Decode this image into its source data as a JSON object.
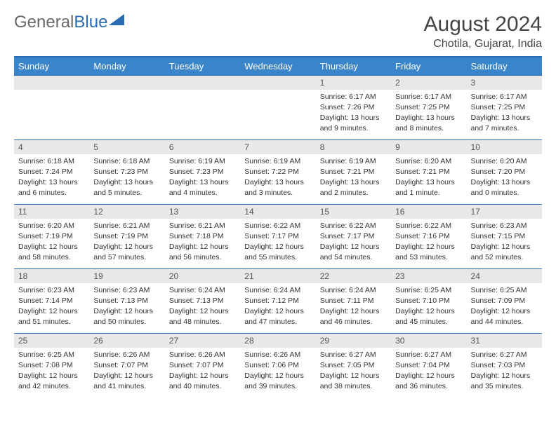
{
  "logo": {
    "text1": "General",
    "text2": "Blue"
  },
  "title": "August 2024",
  "location": "Chotila, Gujarat, India",
  "colors": {
    "header_bg": "#3a85c9",
    "header_border": "#2a6db5",
    "header_text": "#ffffff",
    "daynum_bg": "#e8e8e8",
    "text": "#333333"
  },
  "day_names": [
    "Sunday",
    "Monday",
    "Tuesday",
    "Wednesday",
    "Thursday",
    "Friday",
    "Saturday"
  ],
  "weeks": [
    [
      null,
      null,
      null,
      null,
      {
        "n": "1",
        "sr": "Sunrise: 6:17 AM",
        "ss": "Sunset: 7:26 PM",
        "dl": "Daylight: 13 hours and 9 minutes."
      },
      {
        "n": "2",
        "sr": "Sunrise: 6:17 AM",
        "ss": "Sunset: 7:25 PM",
        "dl": "Daylight: 13 hours and 8 minutes."
      },
      {
        "n": "3",
        "sr": "Sunrise: 6:17 AM",
        "ss": "Sunset: 7:25 PM",
        "dl": "Daylight: 13 hours and 7 minutes."
      }
    ],
    [
      {
        "n": "4",
        "sr": "Sunrise: 6:18 AM",
        "ss": "Sunset: 7:24 PM",
        "dl": "Daylight: 13 hours and 6 minutes."
      },
      {
        "n": "5",
        "sr": "Sunrise: 6:18 AM",
        "ss": "Sunset: 7:23 PM",
        "dl": "Daylight: 13 hours and 5 minutes."
      },
      {
        "n": "6",
        "sr": "Sunrise: 6:19 AM",
        "ss": "Sunset: 7:23 PM",
        "dl": "Daylight: 13 hours and 4 minutes."
      },
      {
        "n": "7",
        "sr": "Sunrise: 6:19 AM",
        "ss": "Sunset: 7:22 PM",
        "dl": "Daylight: 13 hours and 3 minutes."
      },
      {
        "n": "8",
        "sr": "Sunrise: 6:19 AM",
        "ss": "Sunset: 7:21 PM",
        "dl": "Daylight: 13 hours and 2 minutes."
      },
      {
        "n": "9",
        "sr": "Sunrise: 6:20 AM",
        "ss": "Sunset: 7:21 PM",
        "dl": "Daylight: 13 hours and 1 minute."
      },
      {
        "n": "10",
        "sr": "Sunrise: 6:20 AM",
        "ss": "Sunset: 7:20 PM",
        "dl": "Daylight: 13 hours and 0 minutes."
      }
    ],
    [
      {
        "n": "11",
        "sr": "Sunrise: 6:20 AM",
        "ss": "Sunset: 7:19 PM",
        "dl": "Daylight: 12 hours and 58 minutes."
      },
      {
        "n": "12",
        "sr": "Sunrise: 6:21 AM",
        "ss": "Sunset: 7:19 PM",
        "dl": "Daylight: 12 hours and 57 minutes."
      },
      {
        "n": "13",
        "sr": "Sunrise: 6:21 AM",
        "ss": "Sunset: 7:18 PM",
        "dl": "Daylight: 12 hours and 56 minutes."
      },
      {
        "n": "14",
        "sr": "Sunrise: 6:22 AM",
        "ss": "Sunset: 7:17 PM",
        "dl": "Daylight: 12 hours and 55 minutes."
      },
      {
        "n": "15",
        "sr": "Sunrise: 6:22 AM",
        "ss": "Sunset: 7:17 PM",
        "dl": "Daylight: 12 hours and 54 minutes."
      },
      {
        "n": "16",
        "sr": "Sunrise: 6:22 AM",
        "ss": "Sunset: 7:16 PM",
        "dl": "Daylight: 12 hours and 53 minutes."
      },
      {
        "n": "17",
        "sr": "Sunrise: 6:23 AM",
        "ss": "Sunset: 7:15 PM",
        "dl": "Daylight: 12 hours and 52 minutes."
      }
    ],
    [
      {
        "n": "18",
        "sr": "Sunrise: 6:23 AM",
        "ss": "Sunset: 7:14 PM",
        "dl": "Daylight: 12 hours and 51 minutes."
      },
      {
        "n": "19",
        "sr": "Sunrise: 6:23 AM",
        "ss": "Sunset: 7:13 PM",
        "dl": "Daylight: 12 hours and 50 minutes."
      },
      {
        "n": "20",
        "sr": "Sunrise: 6:24 AM",
        "ss": "Sunset: 7:13 PM",
        "dl": "Daylight: 12 hours and 48 minutes."
      },
      {
        "n": "21",
        "sr": "Sunrise: 6:24 AM",
        "ss": "Sunset: 7:12 PM",
        "dl": "Daylight: 12 hours and 47 minutes."
      },
      {
        "n": "22",
        "sr": "Sunrise: 6:24 AM",
        "ss": "Sunset: 7:11 PM",
        "dl": "Daylight: 12 hours and 46 minutes."
      },
      {
        "n": "23",
        "sr": "Sunrise: 6:25 AM",
        "ss": "Sunset: 7:10 PM",
        "dl": "Daylight: 12 hours and 45 minutes."
      },
      {
        "n": "24",
        "sr": "Sunrise: 6:25 AM",
        "ss": "Sunset: 7:09 PM",
        "dl": "Daylight: 12 hours and 44 minutes."
      }
    ],
    [
      {
        "n": "25",
        "sr": "Sunrise: 6:25 AM",
        "ss": "Sunset: 7:08 PM",
        "dl": "Daylight: 12 hours and 42 minutes."
      },
      {
        "n": "26",
        "sr": "Sunrise: 6:26 AM",
        "ss": "Sunset: 7:07 PM",
        "dl": "Daylight: 12 hours and 41 minutes."
      },
      {
        "n": "27",
        "sr": "Sunrise: 6:26 AM",
        "ss": "Sunset: 7:07 PM",
        "dl": "Daylight: 12 hours and 40 minutes."
      },
      {
        "n": "28",
        "sr": "Sunrise: 6:26 AM",
        "ss": "Sunset: 7:06 PM",
        "dl": "Daylight: 12 hours and 39 minutes."
      },
      {
        "n": "29",
        "sr": "Sunrise: 6:27 AM",
        "ss": "Sunset: 7:05 PM",
        "dl": "Daylight: 12 hours and 38 minutes."
      },
      {
        "n": "30",
        "sr": "Sunrise: 6:27 AM",
        "ss": "Sunset: 7:04 PM",
        "dl": "Daylight: 12 hours and 36 minutes."
      },
      {
        "n": "31",
        "sr": "Sunrise: 6:27 AM",
        "ss": "Sunset: 7:03 PM",
        "dl": "Daylight: 12 hours and 35 minutes."
      }
    ]
  ]
}
